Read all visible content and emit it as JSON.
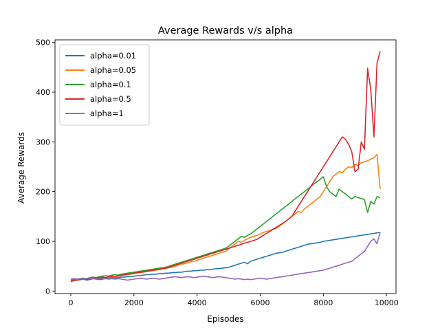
{
  "chart_data": {
    "type": "line",
    "title": "Average Rewards v/s alpha",
    "xlabel": "Episodes",
    "ylabel": "Average Rewards",
    "xlim": [
      -500,
      10300
    ],
    "ylim": [
      -5,
      505
    ],
    "xticks": [
      0,
      2000,
      4000,
      6000,
      8000,
      10000
    ],
    "yticks": [
      0,
      100,
      200,
      300,
      400,
      500
    ],
    "grid": false,
    "legend_position": "top-left",
    "x": [
      0,
      100,
      200,
      300,
      400,
      500,
      600,
      700,
      800,
      900,
      1000,
      1100,
      1200,
      1300,
      1400,
      1500,
      1600,
      1700,
      1800,
      1900,
      2000,
      2100,
      2200,
      2300,
      2400,
      2500,
      2600,
      2700,
      2800,
      2900,
      3000,
      3100,
      3200,
      3300,
      3400,
      3500,
      3600,
      3700,
      3800,
      3900,
      4000,
      4100,
      4200,
      4300,
      4400,
      4500,
      4600,
      4700,
      4800,
      4900,
      5000,
      5100,
      5200,
      5300,
      5400,
      5500,
      5600,
      5700,
      5800,
      5900,
      6000,
      6100,
      6200,
      6300,
      6400,
      6500,
      6600,
      6700,
      6800,
      6900,
      7000,
      7100,
      7200,
      7300,
      7400,
      7500,
      7600,
      7700,
      7800,
      7900,
      8000,
      8100,
      8200,
      8300,
      8400,
      8500,
      8600,
      8700,
      8800,
      8900,
      9000,
      9100,
      9200,
      9300,
      9400,
      9500,
      9600,
      9700,
      9800
    ],
    "series": [
      {
        "name": "alpha=0.01",
        "color": "#1f77b4",
        "values": [
          24,
          23,
          22,
          23,
          24,
          22,
          23,
          25,
          24,
          23,
          24,
          25,
          26,
          27,
          26,
          27,
          28,
          28,
          29,
          29,
          30,
          31,
          31,
          32,
          33,
          33,
          34,
          34,
          35,
          35,
          36,
          36,
          37,
          37,
          38,
          38,
          39,
          40,
          40,
          41,
          41,
          42,
          42,
          43,
          43,
          44,
          45,
          45,
          46,
          47,
          48,
          50,
          52,
          54,
          56,
          58,
          55,
          60,
          62,
          64,
          66,
          68,
          70,
          72,
          74,
          76,
          77,
          78,
          80,
          82,
          84,
          86,
          88,
          90,
          92,
          94,
          95,
          96,
          97,
          98,
          100,
          101,
          102,
          103,
          104,
          105,
          106,
          107,
          108,
          109,
          110,
          111,
          112,
          113,
          114,
          115,
          116,
          117,
          118
        ]
      },
      {
        "name": "alpha=0.05",
        "color": "#ff7f0e",
        "values": [
          20,
          22,
          23,
          24,
          25,
          24,
          25,
          26,
          25,
          26,
          27,
          26,
          28,
          29,
          28,
          30,
          31,
          32,
          33,
          34,
          35,
          36,
          37,
          38,
          39,
          40,
          41,
          42,
          43,
          44,
          45,
          47,
          48,
          50,
          52,
          54,
          55,
          57,
          59,
          60,
          62,
          64,
          66,
          68,
          70,
          72,
          74,
          76,
          78,
          80,
          85,
          90,
          95,
          100,
          98,
          102,
          105,
          108,
          110,
          112,
          115,
          118,
          120,
          122,
          124,
          126,
          130,
          135,
          140,
          145,
          150,
          155,
          160,
          158,
          165,
          170,
          175,
          180,
          185,
          190,
          200,
          210,
          220,
          230,
          235,
          240,
          238,
          245,
          250,
          248,
          255,
          252,
          258,
          260,
          262,
          265,
          268,
          275,
          205
        ]
      },
      {
        "name": "alpha=0.1",
        "color": "#2ca02c",
        "values": [
          22,
          23,
          24,
          25,
          26,
          25,
          27,
          28,
          27,
          29,
          30,
          31,
          30,
          32,
          33,
          32,
          34,
          35,
          36,
          37,
          38,
          39,
          40,
          41,
          42,
          43,
          44,
          45,
          46,
          47,
          48,
          50,
          52,
          54,
          56,
          58,
          60,
          62,
          64,
          66,
          68,
          70,
          72,
          74,
          76,
          78,
          80,
          82,
          84,
          86,
          90,
          95,
          100,
          105,
          110,
          108,
          112,
          115,
          120,
          125,
          130,
          135,
          140,
          145,
          150,
          155,
          160,
          165,
          170,
          175,
          180,
          185,
          190,
          195,
          200,
          205,
          210,
          215,
          220,
          225,
          230,
          210,
          200,
          195,
          190,
          205,
          200,
          195,
          190,
          185,
          190,
          188,
          186,
          184,
          158,
          180,
          175,
          190,
          188
        ]
      },
      {
        "name": "alpha=0.5",
        "color": "#d62728",
        "values": [
          19,
          21,
          22,
          23,
          24,
          23,
          25,
          26,
          25,
          27,
          28,
          27,
          29,
          30,
          29,
          31,
          32,
          33,
          34,
          35,
          36,
          37,
          38,
          39,
          40,
          41,
          42,
          43,
          44,
          45,
          46,
          48,
          50,
          52,
          54,
          56,
          58,
          60,
          62,
          64,
          66,
          68,
          70,
          72,
          74,
          76,
          78,
          80,
          82,
          84,
          86,
          88,
          90,
          92,
          94,
          96,
          98,
          100,
          102,
          104,
          108,
          112,
          116,
          120,
          124,
          128,
          132,
          136,
          140,
          145,
          150,
          160,
          170,
          180,
          190,
          200,
          210,
          220,
          230,
          240,
          250,
          260,
          270,
          280,
          290,
          300,
          310,
          305,
          295,
          280,
          240,
          245,
          300,
          285,
          448,
          405,
          310,
          458,
          482
        ]
      },
      {
        "name": "alpha=1",
        "color": "#9467bd",
        "values": [
          24,
          25,
          24,
          25,
          24,
          25,
          26,
          25,
          24,
          25,
          26,
          25,
          24,
          25,
          24,
          25,
          24,
          23,
          22,
          23,
          24,
          25,
          26,
          25,
          24,
          25,
          26,
          25,
          24,
          25,
          26,
          27,
          28,
          29,
          28,
          27,
          28,
          29,
          28,
          27,
          28,
          29,
          30,
          29,
          28,
          27,
          28,
          29,
          28,
          27,
          26,
          25,
          24,
          25,
          24,
          23,
          24,
          23,
          24,
          25,
          26,
          25,
          24,
          25,
          26,
          27,
          28,
          29,
          30,
          31,
          32,
          33,
          34,
          35,
          36,
          37,
          38,
          39,
          40,
          41,
          42,
          44,
          46,
          48,
          50,
          52,
          54,
          56,
          58,
          60,
          65,
          70,
          75,
          80,
          90,
          100,
          105,
          95,
          118
        ]
      }
    ]
  }
}
